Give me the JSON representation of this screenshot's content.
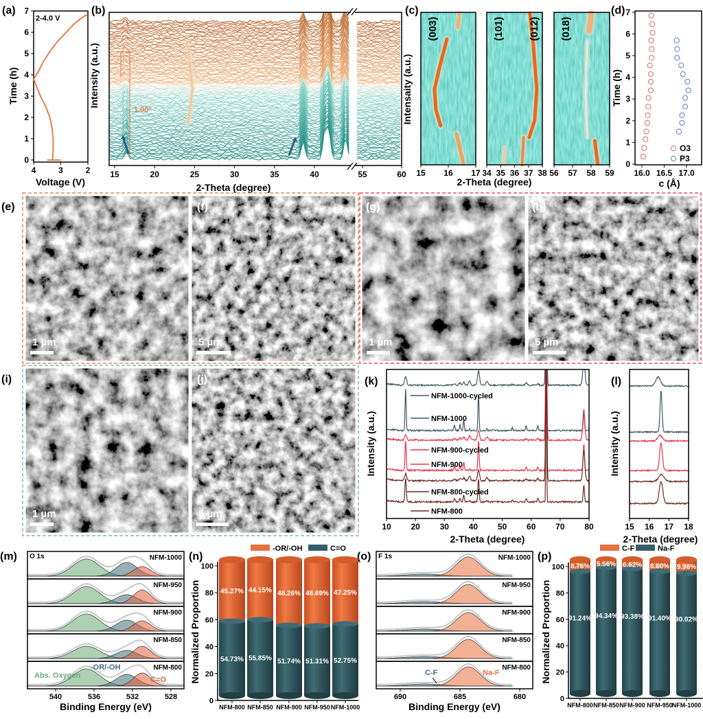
{
  "panel_labels": {
    "a": "(a)",
    "b": "(b)",
    "c": "(c)",
    "d": "(d)",
    "e": "(e)",
    "f": "(f)",
    "g": "(g)",
    "h": "(h)",
    "i": "(i)",
    "j": "(j)",
    "k": "(k)",
    "l": "(l)",
    "m": "(m)",
    "n": "(n)",
    "o": "(o)",
    "p": "(p)"
  },
  "colors": {
    "orange": "#e8703e",
    "teal": "#355e66",
    "green": "#6aaa72",
    "red": "#e8334f",
    "brown": "#6b2a22",
    "dark_teal": "#3e5a60",
    "o3": "#d46a6a",
    "p3": "#5a7ec8",
    "frame_orange": "#e08a5a",
    "frame_red": "#e0506a",
    "frame_blue": "#8ab4c0"
  },
  "chart_data": [
    {
      "panel": "a",
      "type": "line",
      "note": "2-4.0 V",
      "xlabel": "Voltage (V)",
      "ylabel": "Time (h)",
      "xlim": [
        4,
        2
      ],
      "ylim": [
        0,
        7
      ],
      "xticks": [
        4,
        3,
        2
      ],
      "yticks": [
        0,
        1,
        2,
        3,
        4,
        5,
        6,
        7
      ],
      "x": [
        3.5,
        3.0,
        3.3,
        3.28,
        3.28,
        3.32,
        3.4,
        3.55,
        3.75,
        4.0,
        3.85,
        3.65,
        3.4,
        3.1,
        2.8,
        2.5,
        2.2,
        2.0
      ],
      "y": [
        0,
        0,
        0,
        0.5,
        1,
        1.5,
        2,
        2.5,
        3,
        3.8,
        4.1,
        4.6,
        5.1,
        5.6,
        6.0,
        6.4,
        6.7,
        6.85
      ],
      "color": "#e8703e"
    },
    {
      "panel": "b",
      "type": "line",
      "xlabel": "2-Theta (degree)",
      "ylabel": "Intensity (a.u.)",
      "xticks": [
        15,
        20,
        25,
        30,
        35,
        40,
        55,
        60
      ],
      "annotation": "1.00°",
      "traces": 70,
      "peaks": [
        16.5,
        38.6,
        41.3,
        41.8,
        43.9
      ],
      "color_start": "#1d8a80",
      "color_end": "#b8652a"
    },
    {
      "panel": "c",
      "type": "heatmap",
      "xlabel": "2-Theta (degree)",
      "ylabel": "Intensaity (a.u.)",
      "subpanels": [
        {
          "labels": [
            "(003)"
          ],
          "xticks": [
            15,
            16,
            17
          ]
        },
        {
          "labels": [
            "(101)",
            "(012)"
          ],
          "xticks": [
            34,
            35,
            36,
            37,
            38
          ]
        },
        {
          "labels": [
            "(018)"
          ],
          "xticks": [
            56,
            57,
            58,
            59
          ]
        }
      ]
    },
    {
      "panel": "d",
      "type": "scatter",
      "xlabel": "c (Å)",
      "ylabel": "Time (h)",
      "xticks": [
        16.0,
        16.5,
        17.0
      ],
      "yticks": [
        0,
        1,
        2,
        3,
        4,
        5,
        6,
        7
      ],
      "xlim": [
        15.85,
        17.3
      ],
      "ylim": [
        0,
        7
      ],
      "series": [
        {
          "name": "O3",
          "x": [
            16.03,
            16.05,
            16.08,
            16.1,
            16.12,
            16.13,
            16.14,
            16.15,
            16.2,
            16.2,
            16.2,
            16.18,
            16.22,
            16.22,
            16.21,
            16.24,
            16.23,
            16.21
          ],
          "y": [
            0.35,
            0.75,
            1.15,
            1.5,
            1.9,
            2.25,
            2.65,
            3.05,
            3.4,
            3.8,
            4.15,
            4.55,
            4.9,
            5.3,
            5.7,
            6.05,
            6.45,
            6.85
          ]
        },
        {
          "name": "P3",
          "x": [
            16.83,
            16.9,
            16.9,
            16.97,
            16.97,
            17.04,
            17.02,
            16.92,
            16.88,
            16.79,
            16.79,
            16.78
          ],
          "y": [
            1.5,
            1.9,
            2.25,
            2.65,
            3.05,
            3.4,
            3.8,
            4.15,
            4.55,
            4.9,
            5.3,
            5.7
          ]
        }
      ]
    },
    {
      "panel": "k",
      "type": "line",
      "xlabel": "2-Theta (degree)",
      "ylabel": "Intensity (a.u.)",
      "xticks": [
        10,
        20,
        30,
        40,
        50,
        60,
        70,
        80
      ],
      "xlim": [
        10,
        80
      ],
      "peak_positions": [
        16.6,
        33.5,
        35.4,
        36.7,
        38.7,
        41.8,
        44.7,
        53.5,
        58.3,
        62.3,
        65.2,
        78.2
      ],
      "series": [
        {
          "name": "NFM-1000-cycled",
          "color": "#3e5a60",
          "width": 0.35,
          "intensities": [
            13,
            2,
            3,
            4,
            6,
            22,
            6,
            1,
            3,
            2,
            200,
            40
          ]
        },
        {
          "name": "NFM-1000",
          "color": "#3e5a60",
          "width": 0.18,
          "intensities": [
            62,
            9,
            9,
            16,
            2,
            55,
            3,
            4,
            7,
            7,
            220,
            30
          ]
        },
        {
          "name": "NFM-900-cycled",
          "color": "#e8334f",
          "width": 0.35,
          "intensities": [
            8,
            2,
            3,
            4,
            6,
            14,
            5,
            1,
            2,
            2,
            200,
            45
          ]
        },
        {
          "name": "NFM-900",
          "color": "#e8334f",
          "width": 0.2,
          "intensities": [
            45,
            6,
            7,
            12,
            2,
            45,
            2,
            2,
            5,
            5,
            220,
            40
          ]
        },
        {
          "name": "NFM-800-cycled",
          "color": "#6b2a22",
          "width": 0.35,
          "intensities": [
            10,
            2,
            3,
            4,
            7,
            16,
            4,
            1,
            2,
            3,
            200,
            45
          ]
        },
        {
          "name": "NFM-800",
          "color": "#6b2a22",
          "width": 0.22,
          "intensities": [
            35,
            5,
            6,
            10,
            2,
            35,
            2,
            2,
            5,
            5,
            220,
            25
          ]
        }
      ]
    },
    {
      "panel": "l",
      "type": "line",
      "xlabel": "2-Theta (degree)",
      "ylabel": "Intensity (a.u.)",
      "xticks": [
        15,
        16,
        17,
        18
      ],
      "xlim": [
        15,
        18
      ],
      "series": [
        {
          "name": "NFM-1000-cycled",
          "color": "#3e5a60",
          "center": 16.45,
          "width": 0.12,
          "height": 13
        },
        {
          "name": "NFM-1000",
          "color": "#3e5a60",
          "center": 16.6,
          "width": 0.05,
          "height": 60
        },
        {
          "name": "NFM-900-cycled",
          "color": "#e8334f",
          "center": 16.55,
          "width": 0.12,
          "height": 8
        },
        {
          "name": "NFM-900",
          "color": "#e8334f",
          "center": 16.6,
          "width": 0.07,
          "height": 40
        },
        {
          "name": "NFM-800-cycled",
          "color": "#6b2a22",
          "center": 16.62,
          "width": 0.14,
          "height": 10
        },
        {
          "name": "NFM-800",
          "color": "#6b2a22",
          "center": 16.6,
          "width": 0.09,
          "height": 32
        }
      ]
    },
    {
      "panel": "m",
      "type": "area",
      "title": "O 1s",
      "xlabel": "Binding Energy (eV)",
      "xticks": [
        540,
        536,
        532,
        528
      ],
      "xlim": [
        543,
        526.6
      ],
      "components": [
        {
          "name": "Abs. Oxygen",
          "center": 536.8,
          "width": 1.4,
          "color": "#6aaa72"
        },
        {
          "name": "-OR/-OH",
          "center": 532.6,
          "width": 1.1,
          "color": "#3f6f7a"
        },
        {
          "name": "C=O",
          "center": 531.0,
          "width": 0.9,
          "color": "#e0603a"
        }
      ],
      "samples": [
        {
          "name": "NFM-1000",
          "heights": [
            25,
            20,
            14
          ]
        },
        {
          "name": "NFM-950",
          "heights": [
            25,
            13,
            20
          ]
        },
        {
          "name": "NFM-900",
          "heights": [
            25,
            16,
            15
          ]
        },
        {
          "name": "NFM-850",
          "heights": [
            18,
            12,
            18
          ]
        },
        {
          "name": "NFM-800",
          "heights": [
            25,
            17,
            19
          ]
        }
      ]
    },
    {
      "panel": "n",
      "type": "bar",
      "ylabel": "Normalized Proportion",
      "yticks": [
        0,
        20,
        40,
        60,
        80,
        100
      ],
      "ylim": [
        0,
        100
      ],
      "categories": [
        "NFM-800",
        "NFM-850",
        "NFM-900",
        "NFM-950",
        "NFM-1000"
      ],
      "series": [
        {
          "name": "C=O",
          "color": "#355e66",
          "values": [
            54.73,
            55.85,
            51.74,
            51.31,
            52.75
          ],
          "labels": [
            "54.73%",
            "55.85%",
            "51.74%",
            "51.31%",
            "52.75%"
          ]
        },
        {
          "name": "-OR/-OH",
          "color": "#e8703e",
          "values": [
            45.27,
            44.15,
            48.26,
            48.69,
            47.25
          ],
          "labels": [
            "45.27%",
            "44.15%",
            "48.26%",
            "48.69%",
            "47.25%"
          ]
        }
      ],
      "legend": [
        "-OR/-OH",
        "C=O"
      ]
    },
    {
      "panel": "o",
      "type": "area",
      "title": "F 1s",
      "xlabel": "Binding Energy (eV)",
      "xticks": [
        690,
        685,
        680
      ],
      "xlim": [
        692,
        680.6
      ],
      "components": [
        {
          "name": "C-F",
          "center": 688.0,
          "width": 1.5,
          "color": "#3f6f7a"
        },
        {
          "name": "Na-F",
          "center": 684.3,
          "width": 1.0,
          "color": "#e8703e"
        }
      ],
      "samples": [
        {
          "name": "NFM-1000",
          "heights": [
            3,
            28
          ]
        },
        {
          "name": "NFM-950",
          "heights": [
            3,
            28
          ]
        },
        {
          "name": "NFM-900",
          "heights": [
            3,
            27
          ]
        },
        {
          "name": "NFM-850",
          "heights": [
            3,
            28
          ]
        },
        {
          "name": "NFM-800",
          "heights": [
            3,
            28
          ]
        }
      ]
    },
    {
      "panel": "p",
      "type": "bar",
      "ylabel": "Normalized Proportion",
      "yticks": [
        0,
        20,
        40,
        60,
        80,
        100
      ],
      "ylim": [
        0,
        100
      ],
      "categories": [
        "NFM-800",
        "NFM-850",
        "NFM-900",
        "NFM-950",
        "NFM-1000"
      ],
      "series": [
        {
          "name": "Na-F",
          "color": "#355e66",
          "values": [
            91.24,
            94.34,
            93.38,
            91.4,
            90.02
          ],
          "labels": [
            "91.24%",
            "94.34%",
            "93.38%",
            "91.40%",
            "90.02%"
          ]
        },
        {
          "name": "C-F",
          "color": "#e8703e",
          "values": [
            8.76,
            5.56,
            6.62,
            8.6,
            9.98
          ],
          "labels": [
            "8.76%",
            "5.56%",
            "6.62%",
            "8.60%",
            "9.98%"
          ]
        }
      ],
      "legend": [
        "C-F",
        "Na-F"
      ]
    }
  ],
  "sem": [
    {
      "label": "(e)",
      "scale": "1 µm"
    },
    {
      "label": "(f)",
      "scale": "5 µm"
    },
    {
      "label": "(g)",
      "scale": "1 µm"
    },
    {
      "label": "(h)",
      "scale": "5 µm"
    },
    {
      "label": "(i)",
      "scale": "1 µm"
    },
    {
      "label": "(j)",
      "scale": "5 µm"
    }
  ]
}
